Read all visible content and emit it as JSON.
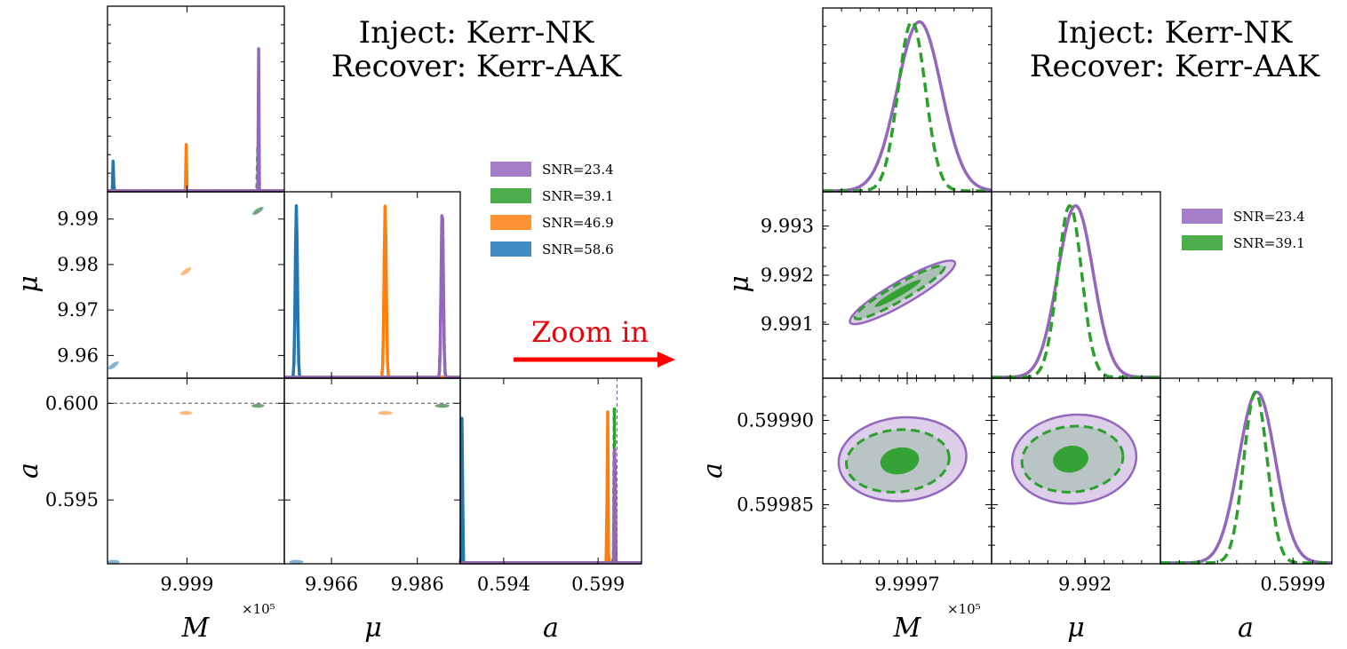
{
  "colors": {
    "purple": "#9467bd",
    "green": "#2ca02c",
    "orange": "#ff7f0e",
    "blue": "#1f77b4",
    "arrow": "#ff0000"
  },
  "titles": {
    "left_line1": "Inject:  Kerr-NK",
    "left_line2": "Recover:  Kerr-AAK",
    "right_line1": "Inject:  Kerr-NK",
    "right_line2": "Recover:  Kerr-AAK"
  },
  "annotation": {
    "zoom_label": "Zoom in"
  },
  "chart_data": [
    {
      "type": "corner",
      "name": "full",
      "parameters": [
        "M",
        "μ",
        "a"
      ],
      "axis_labels": {
        "M": "M",
        "mu": "μ",
        "a": "a"
      },
      "sci_multiplier": "×10⁵",
      "legend": [
        {
          "label": "SNR=23.4",
          "color": "#9467bd"
        },
        {
          "label": "SNR=39.1",
          "color": "#2ca02c"
        },
        {
          "label": "SNR=46.9",
          "color": "#ff7f0e"
        },
        {
          "label": "SNR=58.6",
          "color": "#1f77b4"
        }
      ],
      "ranges": {
        "M": [
          9.9982,
          9.99998
        ],
        "mu": [
          9.955,
          9.996
        ],
        "a": [
          0.5917,
          0.6013
        ]
      },
      "ticks": {
        "M": [
          9.999
        ],
        "mu": [
          9.96,
          9.97,
          9.98,
          9.99
        ],
        "mu_x": [
          9.966,
          9.986
        ],
        "a": [
          0.595,
          0.6
        ],
        "a_x": [
          0.594,
          0.599
        ]
      },
      "tick_labels": {
        "M": [
          "9.999"
        ],
        "mu": [
          "9.96",
          "9.97",
          "9.98",
          "9.99"
        ],
        "mu_x": [
          "9.966",
          "9.986"
        ],
        "a": [
          "0.595",
          "0.600"
        ],
        "a_x": [
          "0.594",
          "0.599"
        ]
      },
      "truth": {
        "M": 9.99972,
        "mu": 9.99,
        "a": 0.6
      },
      "series": [
        {
          "label": "SNR=23.4",
          "color": "#9467bd",
          "M": 9.99972,
          "mu": 9.9918,
          "a": 0.59988
        },
        {
          "label": "SNR=39.1",
          "color": "#2ca02c",
          "M": 9.99971,
          "mu": 9.9918,
          "a": 0.59987
        },
        {
          "label": "SNR=46.9",
          "color": "#ff7f0e",
          "M": 9.99899,
          "mu": 9.9785,
          "a": 0.5995
        },
        {
          "label": "SNR=58.6",
          "color": "#1f77b4",
          "M": 9.99826,
          "mu": 9.9578,
          "a": 0.5918
        }
      ]
    },
    {
      "type": "corner",
      "name": "zoomed",
      "parameters": [
        "M",
        "μ",
        "a"
      ],
      "axis_labels": {
        "M": "M",
        "mu": "μ",
        "a": "a"
      },
      "sci_multiplier": "×10⁵",
      "legend": [
        {
          "label": "SNR=23.4",
          "color": "#9467bd"
        },
        {
          "label": "SNR=39.1",
          "color": "#2ca02c"
        }
      ],
      "ranges": {
        "M": [
          9.99961,
          9.99979
        ],
        "mu": [
          9.9899,
          9.9937
        ],
        "a": [
          0.599815,
          0.599925
        ]
      },
      "ticks": {
        "M": [
          9.9997
        ],
        "mu": [
          9.991,
          9.992,
          9.993
        ],
        "mu_x": [
          9.992
        ],
        "a": [
          0.59985,
          0.5999
        ],
        "a_x": [
          0.5999
        ]
      },
      "tick_labels": {
        "M": [
          "9.9997"
        ],
        "mu": [
          "9.991",
          "9.992",
          "9.993"
        ],
        "mu_x": [
          "9.992"
        ],
        "a": [
          "0.59985",
          "0.59990"
        ],
        "a_x": [
          "0.5999"
        ]
      },
      "series": [
        {
          "label": "SNR=23.4",
          "color": "#9467bd",
          "style": "solid",
          "M": 9.999713,
          "mu": 9.99179,
          "a": 0.599877,
          "sigma": {
            "M": 2.35e-05,
            "mu": 0.0004,
            "a": 1.18e-05
          }
        },
        {
          "label": "SNR=39.1",
          "color": "#2ca02c",
          "style": "dashed",
          "M": 9.999705,
          "mu": 9.99166,
          "a": 0.599876,
          "sigma": {
            "M": 1.45e-05,
            "mu": 0.00027,
            "a": 7.5e-06
          }
        }
      ]
    }
  ]
}
